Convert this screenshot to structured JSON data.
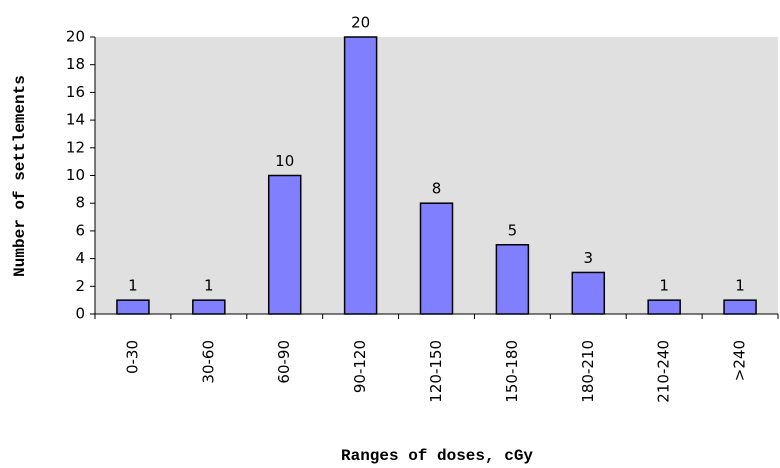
{
  "chart_data": {
    "type": "bar",
    "categories": [
      "0-30",
      "30-60",
      "60-90",
      "90-120",
      "120-150",
      "150-180",
      "180-210",
      "210-240",
      ">240"
    ],
    "values": [
      1,
      1,
      10,
      20,
      8,
      5,
      3,
      1,
      1
    ],
    "color": "#8080ff",
    "xlabel": "Ranges of doses, cGy",
    "ylabel": "Number of settlements",
    "ylim": [
      0,
      20
    ],
    "yticks": [
      0,
      2,
      4,
      6,
      8,
      10,
      12,
      14,
      16,
      18,
      20
    ]
  }
}
